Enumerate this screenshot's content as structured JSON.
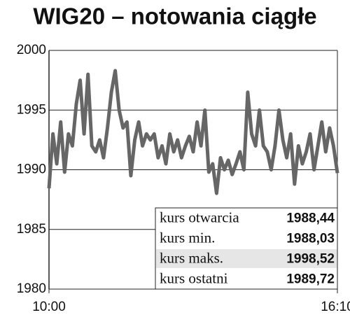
{
  "chart_data": {
    "type": "line",
    "title": "WIG20 – notowania ciągłe",
    "categories": [
      "10:00",
      null,
      null,
      null,
      null,
      null,
      null,
      null,
      null,
      null,
      null,
      null,
      null,
      null,
      null,
      null,
      null,
      null,
      null,
      null,
      null,
      null,
      null,
      null,
      null,
      null,
      null,
      null,
      null,
      null,
      null,
      null,
      null,
      null,
      null,
      null,
      null,
      null,
      null,
      null,
      null,
      null,
      null,
      null,
      null,
      null,
      null,
      null,
      null,
      null,
      null,
      null,
      null,
      null,
      null,
      null,
      null,
      null,
      null,
      null,
      null,
      null,
      null,
      null,
      null,
      null,
      null,
      null,
      null,
      null,
      null,
      null,
      null,
      null,
      "16:10"
    ],
    "values": [
      1988.44,
      1993,
      1990.5,
      1994,
      1989.8,
      1993,
      1992,
      1995.5,
      1997.5,
      1993,
      1998,
      1992,
      1991.5,
      1992.5,
      1991,
      1993.5,
      1996.5,
      1998.3,
      1995,
      1993.5,
      1994,
      1989.5,
      1992.5,
      1994,
      1992,
      1993,
      1992.5,
      1993,
      1991,
      1992,
      1990.5,
      1993,
      1991.5,
      1992.5,
      1991,
      1992,
      1992.8,
      1991.5,
      1994,
      1992,
      1995,
      1989.8,
      1990.5,
      1988.03,
      1991,
      1990,
      1990.8,
      1989.6,
      1990.5,
      1991.5,
      1990,
      1996.5,
      1993,
      1992,
      1995,
      1992,
      1991.5,
      1990,
      1992,
      1995,
      1992.5,
      1991,
      1993,
      1988.8,
      1992,
      1990.5,
      1991.5,
      1993,
      1990,
      1992,
      1994,
      1991.5,
      1993.5,
      1992,
      1989.72
    ],
    "color": "#666666",
    "ylim": [
      1980,
      2000
    ],
    "yticks": [
      1980,
      1985,
      1990,
      1995,
      2000
    ],
    "grid": true,
    "table": {
      "rows": [
        [
          "kurs otwarcia",
          "1988,44"
        ],
        [
          "kurs min.",
          "1988,03"
        ],
        [
          "kurs maks.",
          "1998,52"
        ],
        [
          "kurs ostatni",
          "1989,72"
        ]
      ],
      "highlight_row": 2
    }
  }
}
